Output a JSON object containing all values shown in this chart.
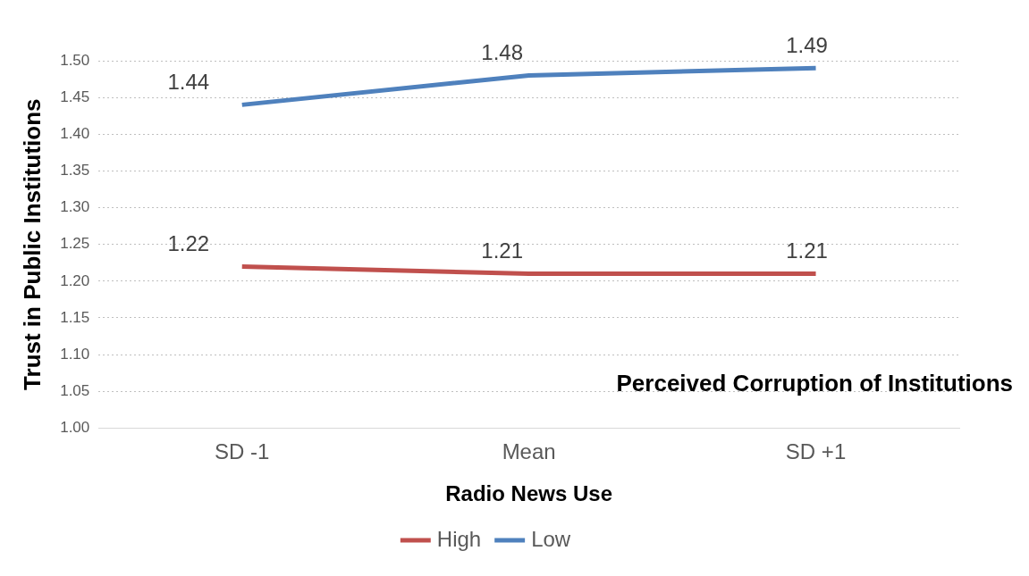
{
  "chart_data": {
    "type": "line",
    "xlabel": "Radio News Use",
    "ylabel": "Trust in Public Institutions",
    "categories": [
      "SD -1",
      "Mean",
      "SD +1"
    ],
    "series": [
      {
        "name": "High",
        "color": "#c0504d",
        "values": [
          1.22,
          1.21,
          1.21
        ]
      },
      {
        "name": "Low",
        "color": "#4f81bd",
        "values": [
          1.44,
          1.48,
          1.49
        ]
      }
    ],
    "ylim": [
      1.0,
      1.5
    ],
    "yticks": [
      {
        "value": 1.0,
        "label": "1.00"
      },
      {
        "value": 1.05,
        "label": "1.05"
      },
      {
        "value": 1.1,
        "label": "1.10"
      },
      {
        "value": 1.15,
        "label": "1.15"
      },
      {
        "value": 1.2,
        "label": "1.20"
      },
      {
        "value": 1.25,
        "label": "1.25"
      },
      {
        "value": 1.3,
        "label": "1.30"
      },
      {
        "value": 1.35,
        "label": "1.35"
      },
      {
        "value": 1.4,
        "label": "1.40"
      },
      {
        "value": 1.45,
        "label": "1.45"
      },
      {
        "value": 1.5,
        "label": "1.50"
      }
    ],
    "grid": "y",
    "legend": "bottom",
    "marker": "none",
    "line_style": "solid",
    "data_labels": true,
    "annotations": [
      "Perceived Corruption of Institutions"
    ]
  }
}
